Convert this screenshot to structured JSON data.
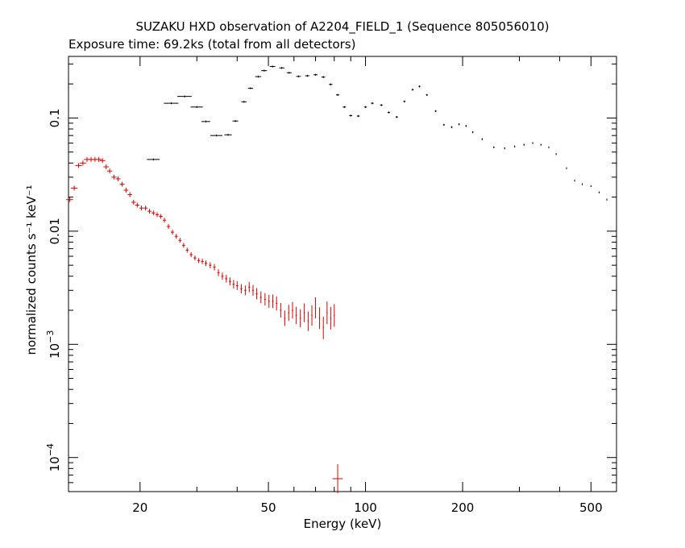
{
  "chart_data": {
    "type": "scatter",
    "title": "SUZAKU HXD observation of A2204_FIELD_1 (Sequence 805056010)",
    "subtitle": "Exposure time: 69.2ks (total from all detectors)",
    "xlabel": "Energy (keV)",
    "ylabel": "normalized counts s⁻¹ keV⁻¹",
    "xscale": "log",
    "yscale": "log",
    "xlim": [
      12,
      600
    ],
    "ylim": [
      5e-05,
      0.35
    ],
    "xticks": [
      {
        "value": 20,
        "label": "20"
      },
      {
        "value": 50,
        "label": "50"
      },
      {
        "value": 100,
        "label": "100"
      },
      {
        "value": 200,
        "label": "200"
      },
      {
        "value": 500,
        "label": "500"
      }
    ],
    "yticks": [
      {
        "value": 0.1,
        "label": "0.1"
      },
      {
        "value": 0.01,
        "label": "0.01"
      },
      {
        "value": 0.001,
        "label": "10",
        "exp": "−3"
      },
      {
        "value": 0.0001,
        "label": "10",
        "exp": "−4"
      }
    ],
    "grid": false,
    "legend": "none",
    "series": [
      {
        "color": "#000000",
        "points": [
          [
            22,
            0.043,
            1.0
          ],
          [
            25,
            0.135,
            1.3
          ],
          [
            27.5,
            0.155,
            1.4
          ],
          [
            30,
            0.125,
            1.3
          ],
          [
            32,
            0.093,
            1.0
          ],
          [
            34.5,
            0.07,
            1.5
          ],
          [
            37.5,
            0.071,
            1.0
          ],
          [
            39.5,
            0.094,
            0.8
          ],
          [
            42,
            0.139,
            0.8
          ],
          [
            44,
            0.183,
            0.8
          ],
          [
            46.5,
            0.232,
            1.0
          ],
          [
            48.5,
            0.262,
            1.0
          ],
          [
            51.5,
            0.285,
            1.0
          ],
          [
            55,
            0.277,
            1.0
          ],
          [
            58,
            0.251,
            1.0
          ],
          [
            62,
            0.233,
            1.0
          ],
          [
            66,
            0.236,
            1.0
          ],
          [
            70,
            0.241,
            1.0
          ],
          [
            74,
            0.23,
            1.0
          ],
          [
            78,
            0.198,
            1.0
          ],
          [
            82,
            0.16,
            1.0
          ],
          [
            86,
            0.125,
            1.0
          ],
          [
            90,
            0.105,
            1.0
          ],
          [
            95,
            0.104,
            1.0
          ],
          [
            100,
            0.125,
            1.0
          ],
          [
            105,
            0.135,
            1.0
          ],
          [
            112,
            0.13,
            1.0
          ],
          [
            118,
            0.112,
            1.0
          ],
          [
            125,
            0.102,
            1.0
          ],
          [
            132,
            0.14,
            1.0
          ],
          [
            140,
            0.178,
            1.0
          ],
          [
            147,
            0.19,
            1.0
          ],
          [
            155,
            0.16,
            1.0
          ],
          [
            165,
            0.115,
            1.0
          ],
          [
            175,
            0.087,
            1.0
          ],
          [
            185,
            0.083,
            1.0
          ],
          [
            195,
            0.088,
            1.0
          ],
          [
            205,
            0.085,
            1.0
          ],
          [
            215,
            0.075,
            1.0
          ],
          [
            230,
            0.065,
            1.0
          ],
          [
            250,
            0.055,
            1.0
          ],
          [
            270,
            0.054,
            1.0
          ],
          [
            290,
            0.056,
            1.0
          ],
          [
            310,
            0.058,
            1.0
          ],
          [
            330,
            0.06,
            1.0
          ],
          [
            350,
            0.058,
            1.0
          ],
          [
            370,
            0.055,
            1.0
          ],
          [
            390,
            0.048,
            1.0
          ],
          [
            420,
            0.036,
            1.0
          ],
          [
            445,
            0.028,
            1.0
          ],
          [
            470,
            0.026,
            1.0
          ],
          [
            500,
            0.025,
            1.0
          ],
          [
            530,
            0.022,
            1.0
          ],
          [
            560,
            0.019,
            1.0
          ],
          [
            600,
            0.017,
            1.0
          ]
        ]
      },
      {
        "color": "#e00000",
        "points": [
          [
            12.1,
            0.019,
            0.3
          ],
          [
            12.5,
            0.024,
            0.3
          ],
          [
            12.9,
            0.038,
            0.3
          ],
          [
            13.3,
            0.04,
            0.3
          ],
          [
            13.7,
            0.043,
            0.3
          ],
          [
            14.1,
            0.043,
            0.3
          ],
          [
            14.5,
            0.043,
            0.3
          ],
          [
            14.9,
            0.043,
            0.3
          ],
          [
            15.3,
            0.042,
            0.3
          ],
          [
            15.7,
            0.037,
            0.3
          ],
          [
            16.1,
            0.034,
            0.3
          ],
          [
            16.6,
            0.03,
            0.3
          ],
          [
            17.1,
            0.029,
            0.3
          ],
          [
            17.6,
            0.026,
            0.3
          ],
          [
            18.1,
            0.023,
            0.3
          ],
          [
            18.6,
            0.021,
            0.3
          ],
          [
            19.1,
            0.018,
            0.3
          ],
          [
            19.6,
            0.017,
            0.3
          ],
          [
            20.2,
            0.016,
            0.3
          ],
          [
            20.8,
            0.016,
            0.3
          ],
          [
            21.4,
            0.015,
            0.3
          ],
          [
            22.0,
            0.0145,
            0.3
          ],
          [
            22.6,
            0.014,
            0.3
          ],
          [
            23.2,
            0.0135,
            0.3
          ],
          [
            23.8,
            0.0125,
            0.3
          ],
          [
            24.5,
            0.011,
            0.3
          ],
          [
            25.2,
            0.0098,
            0.3
          ],
          [
            25.9,
            0.009,
            0.3
          ],
          [
            26.6,
            0.0083,
            0.3
          ],
          [
            27.3,
            0.0075,
            0.3
          ],
          [
            28.0,
            0.0068,
            0.3
          ],
          [
            28.8,
            0.0062,
            0.3
          ],
          [
            29.6,
            0.0058,
            0.3
          ],
          [
            30.4,
            0.0055,
            0.3
          ],
          [
            31.2,
            0.0054,
            0.3
          ],
          [
            32.0,
            0.0052,
            0.3
          ],
          [
            33.0,
            0.005,
            0.3
          ],
          [
            34.0,
            0.0048,
            0.3
          ],
          [
            35.0,
            0.0043,
            0.3
          ],
          [
            36.0,
            0.004,
            0.3
          ],
          [
            37.0,
            0.0038,
            0.3
          ],
          [
            38.0,
            0.0036,
            0.3
          ],
          [
            39.0,
            0.0034,
            0.3
          ],
          [
            40.0,
            0.0033,
            0.3
          ],
          [
            41.2,
            0.0031,
            0.3
          ],
          [
            42.4,
            0.003,
            0.3
          ],
          [
            43.6,
            0.0032,
            0.3
          ],
          [
            44.8,
            0.003,
            0.3
          ],
          [
            46.0,
            0.0028,
            0.3
          ],
          [
            47.4,
            0.0026,
            0.3
          ],
          [
            48.8,
            0.0025,
            0.3
          ],
          [
            50.2,
            0.0024,
            0.3
          ],
          [
            51.6,
            0.0024,
            0.3
          ],
          [
            53.0,
            0.0023,
            0.3
          ],
          [
            54.6,
            0.002,
            0.3
          ],
          [
            56.2,
            0.0017,
            0.3
          ],
          [
            57.8,
            0.0019,
            0.3
          ],
          [
            59.4,
            0.002,
            0.3
          ],
          [
            61.0,
            0.0018,
            0.3
          ],
          [
            62.8,
            0.0017,
            0.3
          ],
          [
            64.6,
            0.0019,
            0.3
          ],
          [
            66.4,
            0.0016,
            0.3
          ],
          [
            68.2,
            0.0018,
            0.3
          ],
          [
            70.0,
            0.0021,
            0.3
          ],
          [
            72.0,
            0.0017,
            0.3
          ],
          [
            74.0,
            0.0014,
            0.3
          ],
          [
            76.0,
            0.0019,
            0.3
          ],
          [
            78.0,
            0.0017,
            0.3
          ],
          [
            80.0,
            0.0018,
            0.3
          ],
          [
            82.0,
            6.5e-05,
            3.0
          ]
        ]
      }
    ]
  }
}
